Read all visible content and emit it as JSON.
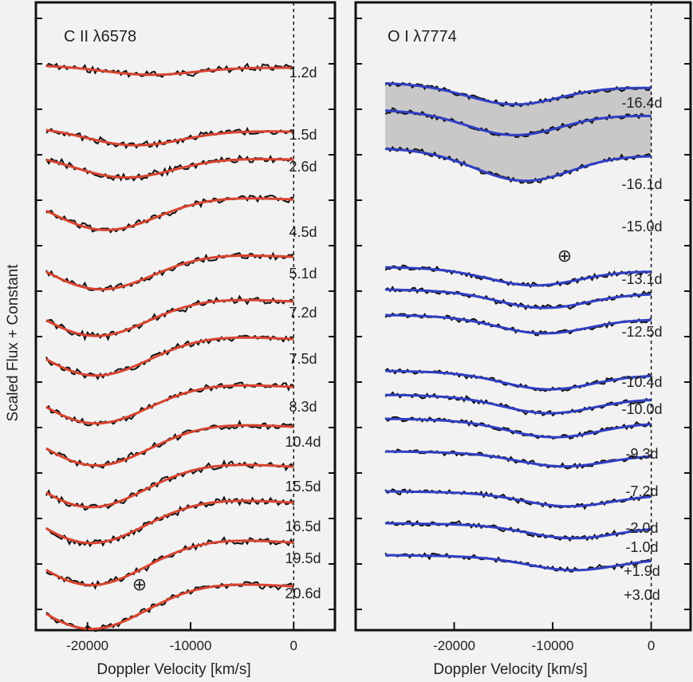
{
  "ylabel": "Scaled Flux + Constant",
  "colors": {
    "data": "#111111",
    "model_left": "#d9442f",
    "model_right": "#2f3fc4",
    "shade": "#c8c8c8",
    "panel_bg": "#f2f2f2"
  },
  "chart_data": [
    {
      "type": "line",
      "title": "C II λ6578",
      "xlabel": "Doppler Velocity [km/s]",
      "xlim": [
        -25000,
        4000
      ],
      "xticks": [
        -20000,
        -10000,
        0
      ],
      "xtick_labels": [
        "-20000",
        "-10000",
        "0"
      ],
      "model_color": "#d9442f",
      "telluric_symbol": "⊕",
      "x_dashed_line": 0,
      "epochs": [
        {
          "label": "1.2d",
          "trough_v": -14000,
          "depth": 0.15
        },
        {
          "label": "1.5d",
          "trough_v": -15500,
          "depth": 0.3
        },
        {
          "label": "2.6d",
          "trough_v": -16500,
          "depth": 0.4
        },
        {
          "label": "4.5d",
          "trough_v": -18500,
          "depth": 0.7
        },
        {
          "label": "5.1d",
          "trough_v": -19000,
          "depth": 0.75
        },
        {
          "label": "7.2d",
          "trough_v": -19500,
          "depth": 0.8
        },
        {
          "label": "7.5d",
          "trough_v": -19500,
          "depth": 0.85
        },
        {
          "label": "8.3d",
          "trough_v": -19500,
          "depth": 0.85
        },
        {
          "label": "10.4d",
          "trough_v": -19500,
          "depth": 0.9
        },
        {
          "label": "15.5d",
          "trough_v": -20000,
          "depth": 0.95
        },
        {
          "label": "16.5d",
          "trough_v": -20000,
          "depth": 0.95
        },
        {
          "label": "19.5d",
          "trough_v": -20000,
          "depth": 1.0
        },
        {
          "label": "20.6d",
          "trough_v": -20000,
          "depth": 1.0
        }
      ]
    },
    {
      "type": "line",
      "title": "O I λ7774",
      "xlabel": "Doppler Velocity [km/s]",
      "xlim": [
        -30000,
        4000
      ],
      "xticks": [
        -20000,
        -10000,
        0
      ],
      "xtick_labels": [
        "-20000",
        "-10000",
        "0"
      ],
      "model_color": "#2f3fc4",
      "telluric_symbol": "⊕",
      "x_dashed_line": 0,
      "epochs": [
        {
          "label": "-16.4d",
          "trough_v": -14000,
          "depth": 0.3
        },
        {
          "label": "-16.1d",
          "trough_v": -14000,
          "depth": 0.35
        },
        {
          "label": "-15.0d",
          "trough_v": -13000,
          "depth": 0.45
        },
        {
          "label": "-13.1d",
          "trough_v": -12000,
          "depth": 0.25
        },
        {
          "label": "-12.5d",
          "trough_v": -11000,
          "depth": 0.25
        },
        {
          "label": "-10.4d",
          "trough_v": -11000,
          "depth": 0.25
        },
        {
          "label": "-10.0d",
          "trough_v": -10500,
          "depth": 0.25
        },
        {
          "label": "-9.3d",
          "trough_v": -10500,
          "depth": 0.25
        },
        {
          "label": "-7.2d",
          "trough_v": -10000,
          "depth": 0.25
        },
        {
          "label": "-2.0d",
          "trough_v": -9000,
          "depth": 0.2
        },
        {
          "label": "-1.0d",
          "trough_v": -8500,
          "depth": 0.2
        },
        {
          "label": "+1.9d",
          "trough_v": -8000,
          "depth": 0.2
        },
        {
          "label": "+3.0d",
          "trough_v": -8000,
          "depth": 0.2
        }
      ]
    }
  ]
}
